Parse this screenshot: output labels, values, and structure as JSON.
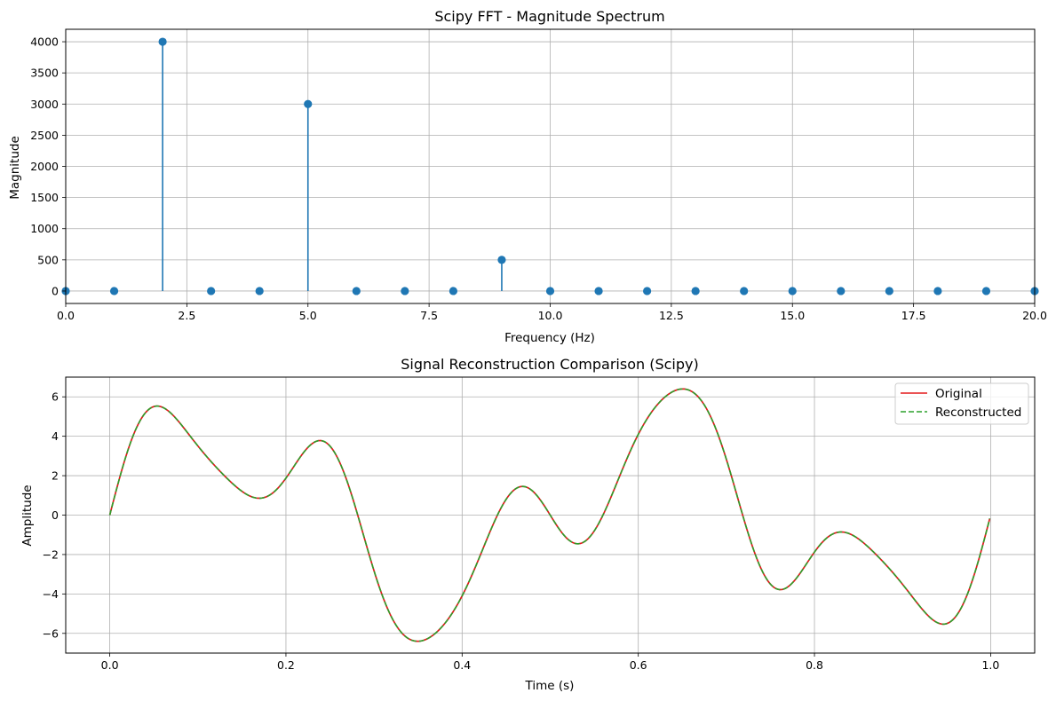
{
  "colors": {
    "stem": "#1f77b4",
    "original": "#e41a1c",
    "reconstructed": "#2ca02c",
    "grid": "#b0b0b0"
  },
  "chart_data": [
    {
      "type": "scatter",
      "style": "stem",
      "title": "Scipy FFT - Magnitude Spectrum",
      "xlabel": "Frequency (Hz)",
      "ylabel": "Magnitude",
      "xlim": [
        0,
        20
      ],
      "ylim": [
        -200,
        4200
      ],
      "xticks": [
        0,
        2.5,
        5,
        7.5,
        10,
        12.5,
        15,
        17.5,
        20
      ],
      "xtick_labels": [
        "0.0",
        "2.5",
        "5.0",
        "7.5",
        "10.0",
        "12.5",
        "15.0",
        "17.5",
        "20.0"
      ],
      "yticks": [
        0,
        500,
        1000,
        1500,
        2000,
        2500,
        3000,
        3500,
        4000
      ],
      "ytick_labels": [
        "0",
        "500",
        "1000",
        "1500",
        "2000",
        "2500",
        "3000",
        "3500",
        "4000"
      ],
      "grid": true,
      "x": [
        0,
        1,
        2,
        3,
        4,
        5,
        6,
        7,
        8,
        9,
        10,
        11,
        12,
        13,
        14,
        15,
        16,
        17,
        18,
        19,
        20
      ],
      "y": [
        0,
        0,
        4000,
        0,
        0,
        3000,
        0,
        0,
        0,
        500,
        0,
        0,
        0,
        0,
        0,
        0,
        0,
        0,
        0,
        0,
        0
      ]
    },
    {
      "type": "line",
      "title": "Signal Reconstruction Comparison (Scipy)",
      "xlabel": "Time (s)",
      "ylabel": "Amplitude",
      "xlim": [
        -0.05,
        1.05
      ],
      "ylim": [
        -7,
        7
      ],
      "xticks": [
        0,
        0.2,
        0.4,
        0.6,
        0.8,
        1.0
      ],
      "xtick_labels": [
        "0.0",
        "0.2",
        "0.4",
        "0.6",
        "0.8",
        "1.0"
      ],
      "yticks": [
        -6,
        -4,
        -2,
        0,
        2,
        4,
        6
      ],
      "ytick_labels": [
        "−6",
        "−4",
        "−2",
        "0",
        "2",
        "4",
        "6"
      ],
      "grid": true,
      "legend_position": "top-right",
      "signal": {
        "components": [
          {
            "amplitude": 4,
            "frequency": 2
          },
          {
            "amplitude": 3,
            "frequency": 5
          },
          {
            "amplitude": 0.5,
            "frequency": 9
          }
        ],
        "t_range": [
          0,
          1
        ]
      },
      "series": [
        {
          "name": "Original",
          "style": "solid"
        },
        {
          "name": "Reconstructed",
          "style": "dashed"
        }
      ]
    }
  ]
}
